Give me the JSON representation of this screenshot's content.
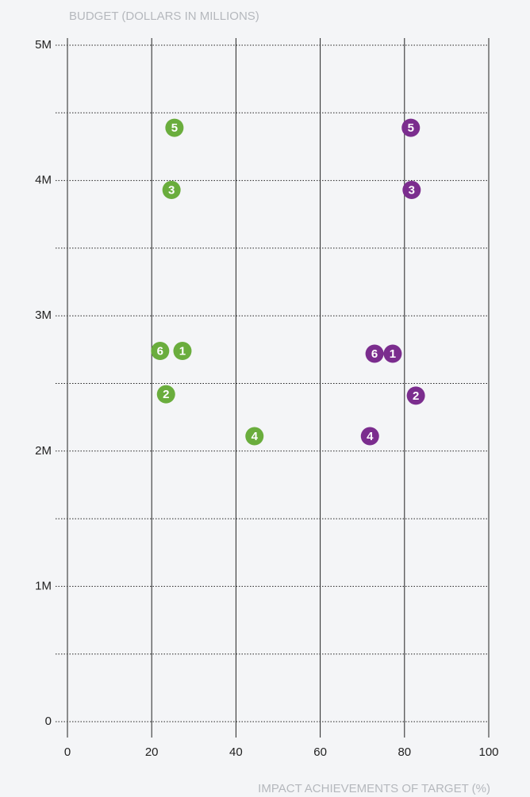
{
  "chart_data": {
    "type": "scatter",
    "ylabel": "BUDGET (DOLLARS IN MILLIONS)",
    "xlabel": "IMPACT ACHIEVEMENTS OF TARGET (%)",
    "xlim": [
      0,
      100
    ],
    "xticks": [
      0,
      20,
      40,
      60,
      80,
      100
    ],
    "ylim": [
      0,
      5
    ],
    "yticks": [
      0,
      {
        "value": 1,
        "label": "1M"
      },
      {
        "value": 2,
        "label": "2M"
      },
      {
        "value": 3,
        "label": "3M"
      },
      {
        "value": 4,
        "label": "4M"
      },
      {
        "value": 5,
        "label": "5M"
      }
    ],
    "minor_yticks": [
      0.5,
      1.5,
      2.5,
      3.5,
      4.5
    ],
    "grid": true,
    "series": [
      {
        "color": "#6aad3d",
        "labels": [
          "1",
          "2",
          "3",
          "4",
          "5",
          "6"
        ],
        "x": [
          27.3,
          23.4,
          24.7,
          44.4,
          25.4,
          22.0
        ],
        "values": [
          2.74,
          2.42,
          3.93,
          2.11,
          4.39,
          2.74
        ]
      },
      {
        "color": "#7b2d8e",
        "labels": [
          "1",
          "2",
          "3",
          "4",
          "5",
          "6"
        ],
        "x": [
          77.2,
          82.7,
          81.7,
          71.8,
          81.5,
          72.9
        ],
        "values": [
          2.72,
          2.41,
          3.93,
          2.11,
          4.39,
          2.72
        ]
      }
    ]
  }
}
